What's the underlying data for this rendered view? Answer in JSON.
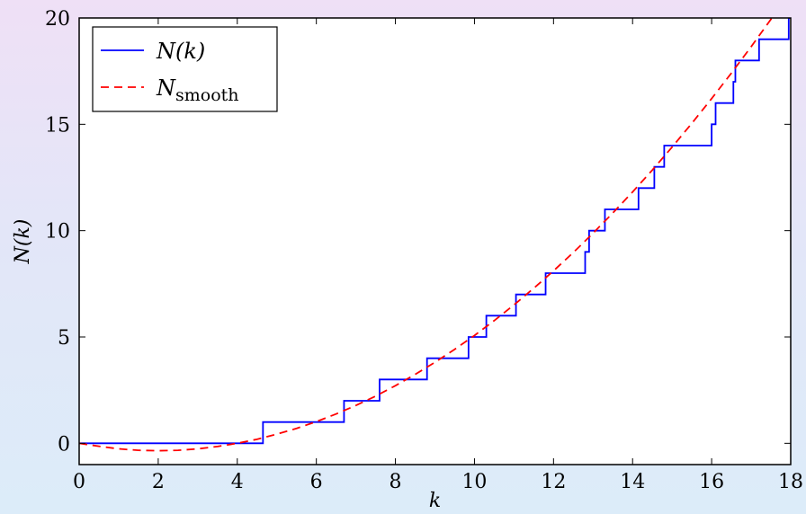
{
  "chart_data": {
    "type": "line",
    "title": "",
    "xlabel": "k",
    "ylabel": "N(k)",
    "xlim": [
      0,
      18
    ],
    "ylim": [
      -1,
      20
    ],
    "x_ticks": [
      0,
      2,
      4,
      6,
      8,
      10,
      12,
      14,
      16,
      18
    ],
    "y_ticks": [
      0,
      5,
      10,
      15,
      20
    ],
    "x_tick_labels": [
      "0",
      "2",
      "4",
      "6",
      "8",
      "10",
      "12",
      "14",
      "16",
      "18"
    ],
    "y_tick_labels": [
      "0",
      "5",
      "10",
      "15",
      "20"
    ],
    "grid": false,
    "legend_position": "top-left",
    "series": [
      {
        "name": "N(k)",
        "style": "solid-step",
        "color": "#0000ff",
        "x": [
          0,
          4.65,
          4.65,
          6.7,
          6.7,
          7.6,
          7.6,
          8.8,
          8.8,
          9.85,
          9.85,
          10.3,
          10.3,
          11.05,
          11.05,
          11.8,
          11.8,
          12.8,
          12.8,
          12.9,
          12.9,
          13.3,
          13.3,
          14.15,
          14.15,
          14.55,
          14.55,
          14.8,
          14.8,
          14.9,
          14.9,
          16.0,
          16.0,
          16.1,
          16.1,
          16.55,
          16.55,
          16.6,
          16.6,
          17.2,
          17.2,
          17.95,
          17.95,
          18.0
        ],
        "y": [
          0,
          0,
          1,
          1,
          2,
          2,
          3,
          3,
          4,
          4,
          5,
          5,
          6,
          6,
          7,
          7,
          8,
          8,
          9,
          9,
          10,
          10,
          11,
          11,
          12,
          12,
          13,
          13,
          14,
          14,
          14,
          14,
          15,
          15,
          16,
          16,
          17,
          17,
          18,
          18,
          19,
          19,
          20,
          20
        ]
      },
      {
        "name": "N_smooth",
        "name_main": "N",
        "name_sub": "smooth",
        "style": "dashed",
        "color": "#ff0000",
        "x": [
          0,
          0.5,
          1,
          1.5,
          2,
          2.5,
          3,
          3.5,
          4,
          4.5,
          5,
          5.5,
          6,
          6.5,
          7,
          7.5,
          8,
          8.5,
          9,
          9.5,
          10,
          10.5,
          11,
          11.5,
          12,
          12.5,
          13,
          13.5,
          14,
          14.5,
          15,
          15.5,
          16,
          16.5,
          17,
          17.5,
          18
        ],
        "y": [
          0,
          -0.14,
          -0.26,
          -0.33,
          -0.35,
          -0.33,
          -0.26,
          -0.15,
          0,
          0.19,
          0.43,
          0.7,
          1.02,
          1.38,
          1.78,
          2.22,
          2.71,
          3.24,
          3.81,
          4.42,
          5.07,
          5.77,
          6.51,
          7.29,
          8.11,
          8.97,
          9.88,
          10.83,
          11.82,
          12.85,
          13.93,
          15.05,
          16.21,
          17.41,
          18.65,
          19.94,
          21.27
        ]
      }
    ]
  }
}
